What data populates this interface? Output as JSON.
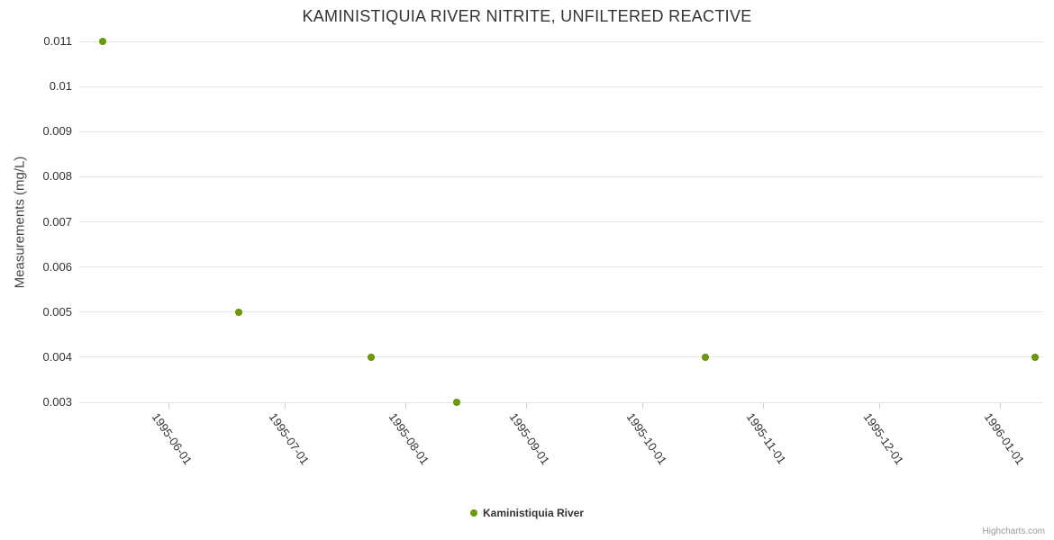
{
  "chart_data": {
    "type": "scatter",
    "title": "KAMINISTIQUIA RIVER NITRITE, UNFILTERED REACTIVE",
    "xlabel": "",
    "ylabel": "Measurements (mg/L)",
    "legend_position": "bottom-center",
    "grid": "horizontal-only",
    "background": "#ffffff",
    "gridline_color": "#e6e6e6",
    "ylim": [
      0.003,
      0.011
    ],
    "y_ticks": [
      0.003,
      0.004,
      0.005,
      0.006,
      0.007,
      0.008,
      0.009,
      0.01,
      0.011
    ],
    "x_range": [
      "1995-05-09",
      "1996-01-12"
    ],
    "x_ticks": [
      "1995-06-01",
      "1995-07-01",
      "1995-08-01",
      "1995-09-01",
      "1995-10-01",
      "1995-11-01",
      "1995-12-01",
      "1996-01-01"
    ],
    "series": [
      {
        "name": "Kaministiquia River",
        "color": "#6b9c08",
        "marker": "circle",
        "points": [
          {
            "date": "1995-05-15",
            "value": 0.011
          },
          {
            "date": "1995-06-19",
            "value": 0.005
          },
          {
            "date": "1995-07-23",
            "value": 0.004
          },
          {
            "date": "1995-08-14",
            "value": 0.003
          },
          {
            "date": "1995-10-17",
            "value": 0.004
          },
          {
            "date": "1996-01-10",
            "value": 0.004
          }
        ]
      }
    ]
  },
  "credits": "Highcharts.com"
}
